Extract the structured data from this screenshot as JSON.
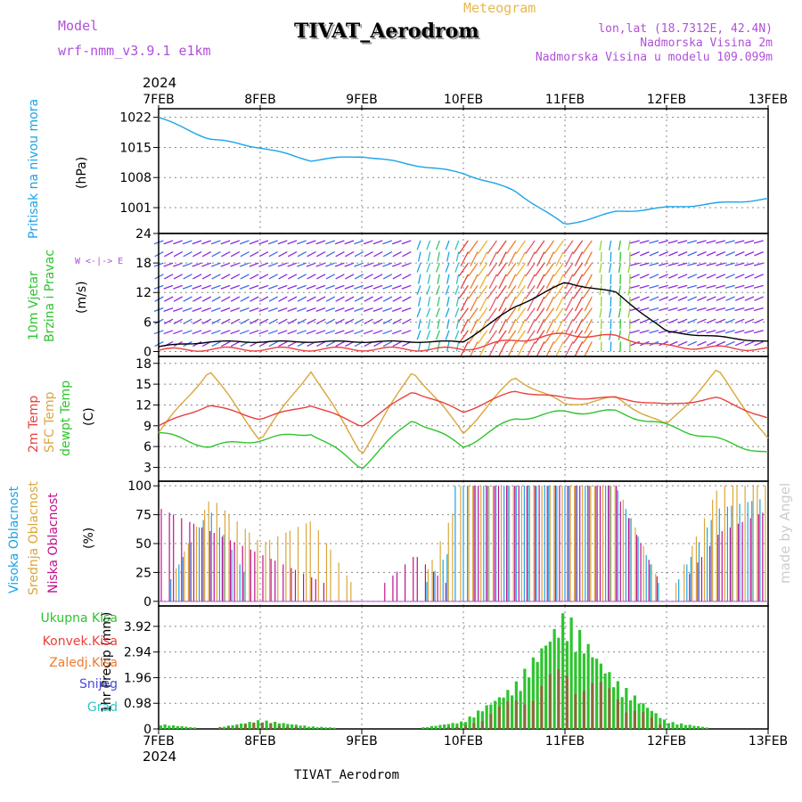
{
  "header": {
    "model_label": "Model",
    "model_value": "wrf-nmm_v3.9.1 e1km",
    "title": "TIVAT_Aerodrom",
    "meteogram": "Meteogram",
    "lonlat": "lon,lat (18.7312E, 42.4N)",
    "elev": "Nadmorska Visina 2m",
    "model_elev": "Nadmorska Visina u modelu 109.099m",
    "footer": "TIVAT_Aerodrom",
    "credit": "made by Angel"
  },
  "axis": {
    "year": "2024",
    "dates": [
      "7FEB",
      "8FEB",
      "9FEB",
      "10FEB",
      "11FEB",
      "12FEB",
      "13FEB"
    ]
  },
  "panels": {
    "pressure": {
      "label": "Pritisak na nivou mora",
      "unit": "(hPa)",
      "ticks": [
        "1001",
        "1008",
        "1015",
        "1022"
      ]
    },
    "wind": {
      "label1": "10m Vjetar",
      "label2": "Brzina i Pravac",
      "unit": "(m/s)",
      "ticks": [
        "0",
        "6",
        "12",
        "18",
        "24"
      ],
      "compass": "W <-|-> E"
    },
    "temp": {
      "label1": "2m Temp",
      "label2": "SFC Temp",
      "label3": "dewpt Temp",
      "unit": "(C)",
      "ticks": [
        "3",
        "6",
        "9",
        "12",
        "15",
        "18"
      ]
    },
    "cloud": {
      "label1": "Visoka Oblacnost",
      "label2": "Srednja Oblacnost",
      "label3": "Niska Oblacnost",
      "unit": "(%)",
      "ticks": [
        "0",
        "25",
        "50",
        "75",
        "100"
      ]
    },
    "precip": {
      "unit": "1hr Precip (mm)",
      "ticks": [
        "0",
        "0.98",
        "1.96",
        "2.94",
        "3.92"
      ],
      "legend": [
        "Ukupna Kisa",
        "Konvek.Kisa",
        "Zaledj.Kisa",
        "Snijeg",
        "Grad"
      ]
    }
  },
  "colors": {
    "pressure": "#1aa3e8",
    "t2m": "#e8413c",
    "sfc": "#dba63a",
    "dew": "#2ec42e",
    "high": "#1aa3e8",
    "mid": "#dba63a",
    "low": "#c0108e",
    "rain": "#2ec42e",
    "conv": "#e8413c",
    "frz": "#f07a2e",
    "snow": "#4a4ae0",
    "hail": "#2ec4c4",
    "purple": "#b050d8",
    "orange": "#e8b84a"
  },
  "chart_data": [
    {
      "type": "line",
      "title": "Pritisak na nivou mora",
      "ylabel": "(hPa)",
      "ylim": [
        995,
        1024
      ],
      "x": [
        "7FEB",
        "7FEB12",
        "8FEB",
        "8FEB12",
        "9FEB",
        "9FEB12",
        "10FEB",
        "10FEB12",
        "11FEB",
        "11FEB12",
        "12FEB",
        "12FEB12",
        "13FEB"
      ],
      "series": [
        {
          "name": "Pritisak na nivou mora",
          "values": [
            1022,
            1017,
            1015,
            1012,
            1013,
            1011,
            1009,
            1005,
            997,
            1000,
            1001,
            1002,
            1003
          ]
        }
      ]
    },
    {
      "type": "line",
      "title": "10m Vjetar Brzina i Pravac",
      "ylabel": "(m/s)",
      "ylim": [
        -1,
        24
      ],
      "x": [
        "7FEB",
        "7FEB12",
        "8FEB",
        "8FEB12",
        "9FEB",
        "9FEB12",
        "10FEB",
        "10FEB12",
        "11FEB",
        "11FEB12",
        "12FEB",
        "12FEB12",
        "13FEB"
      ],
      "series": [
        {
          "name": "10m Vjetar",
          "values": [
            1,
            2,
            2,
            2,
            2,
            2,
            2,
            9,
            14,
            12,
            4,
            3,
            2
          ]
        }
      ]
    },
    {
      "type": "line",
      "title": "Temp",
      "ylabel": "(C)",
      "ylim": [
        1,
        19
      ],
      "x": [
        "7FEB",
        "7FEB12",
        "8FEB",
        "8FEB12",
        "9FEB",
        "9FEB12",
        "10FEB",
        "10FEB12",
        "11FEB",
        "11FEB12",
        "12FEB",
        "12FEB12",
        "13FEB"
      ],
      "series": [
        {
          "name": "2m Temp",
          "values": [
            9,
            12,
            10,
            12,
            9,
            14,
            11,
            14,
            13,
            13,
            12,
            13,
            10
          ]
        },
        {
          "name": "SFC Temp",
          "values": [
            8,
            17,
            7,
            17,
            5,
            17,
            8,
            16,
            12,
            13,
            9,
            17,
            7
          ]
        },
        {
          "name": "dewpt Temp",
          "values": [
            8,
            6,
            7,
            8,
            3,
            10,
            6,
            10,
            11,
            11,
            9,
            7,
            5
          ]
        }
      ]
    },
    {
      "type": "bar",
      "title": "Oblacnost",
      "ylabel": "(%)",
      "ylim": [
        0,
        100
      ],
      "x": [
        "7FEB",
        "7FEB12",
        "8FEB",
        "8FEB12",
        "9FEB",
        "9FEB12",
        "10FEB",
        "10FEB12",
        "11FEB",
        "11FEB12",
        "12FEB",
        "12FEB12",
        "13FEB"
      ],
      "series": [
        {
          "name": "Visoka Oblacnost",
          "values": [
            0,
            80,
            0,
            0,
            0,
            0,
            60,
            100,
            100,
            100,
            0,
            80,
            90
          ]
        },
        {
          "name": "Srednja Oblacnost",
          "values": [
            0,
            90,
            50,
            70,
            0,
            0,
            100,
            100,
            100,
            100,
            0,
            100,
            100
          ]
        },
        {
          "name": "Niska Oblacnost",
          "values": [
            80,
            60,
            40,
            20,
            0,
            40,
            0,
            100,
            100,
            90,
            0,
            60,
            80
          ]
        }
      ]
    },
    {
      "type": "bar",
      "title": "1hr Precip",
      "ylabel": "1hr Precip (mm)",
      "ylim": [
        0,
        4.7
      ],
      "x": [
        "7FEB",
        "7FEB12",
        "8FEB",
        "8FEB12",
        "9FEB",
        "9FEB12",
        "10FEB",
        "10FEB12",
        "11FEB",
        "11FEB12",
        "12FEB",
        "12FEB12",
        "13FEB"
      ],
      "series": [
        {
          "name": "Ukupna Kisa",
          "values": [
            0.2,
            0,
            0.35,
            0.1,
            0,
            0,
            0.3,
            1.7,
            4.6,
            1.9,
            0.3,
            0,
            0
          ]
        },
        {
          "name": "Konvek.Kisa",
          "values": [
            0,
            0,
            0.3,
            0,
            0,
            0,
            0.1,
            1.2,
            2.5,
            1.5,
            0,
            0,
            0
          ]
        }
      ]
    }
  ]
}
